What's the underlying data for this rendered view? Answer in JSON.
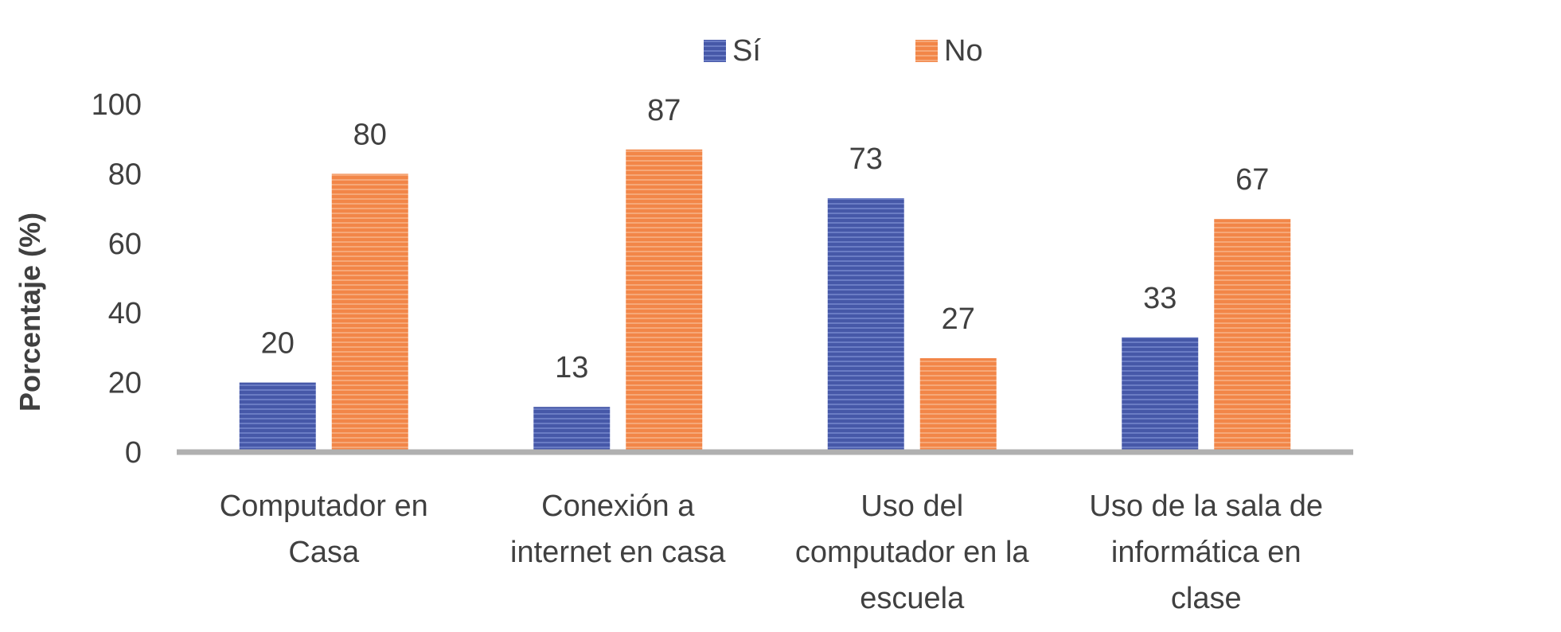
{
  "chart_data": {
    "type": "bar",
    "title": "",
    "xlabel": "",
    "ylabel": "Porcentaje (%)",
    "ylim": [
      0,
      100
    ],
    "yticks": [
      0,
      20,
      40,
      60,
      80,
      100
    ],
    "grid": false,
    "legend_position": "top",
    "categories": [
      [
        "Computador en",
        "Casa"
      ],
      [
        "Conexión a",
        "internet en casa"
      ],
      [
        "Uso del",
        "computador en la",
        "escuela"
      ],
      [
        "Uso de la sala de",
        "informática en",
        "clase"
      ]
    ],
    "series": [
      {
        "name": "Sí",
        "color": "#4658A8",
        "values": [
          20,
          13,
          73,
          33
        ]
      },
      {
        "name": "No",
        "color": "#F28648",
        "values": [
          80,
          87,
          27,
          67
        ]
      }
    ]
  }
}
